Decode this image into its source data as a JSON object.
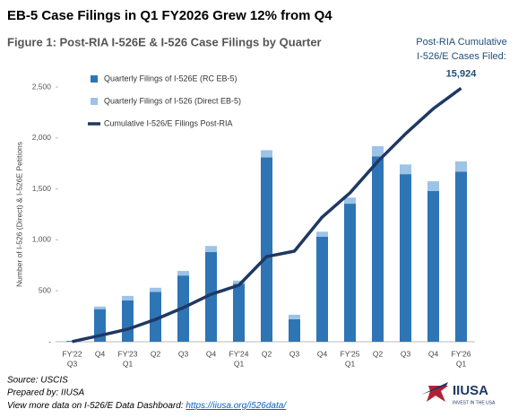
{
  "chart_data": {
    "type": "bar",
    "title": "EB-5 Case Filings in Q1 FY2026 Grew 12% from Q4",
    "subtitle": "Figure 1: Post-RIA I-526E & I-526 Case Filings by Quarter",
    "y_label": "Number of I-526 (Direct) & I-526E Petitions",
    "annotation": [
      "Post-RIA Cumulative",
      "I-526/E Cases Filed:"
    ],
    "categories": [
      [
        "FY'22",
        "Q3"
      ],
      [
        "Q4"
      ],
      [
        "FY'23",
        "Q1"
      ],
      [
        "Q2"
      ],
      [
        "Q3"
      ],
      [
        "Q4"
      ],
      [
        "FY'24",
        "Q1"
      ],
      [
        "Q2"
      ],
      [
        "Q3"
      ],
      [
        "Q4"
      ],
      [
        "FY'25",
        "Q1"
      ],
      [
        "Q2"
      ],
      [
        "Q3"
      ],
      [
        "Q4"
      ],
      [
        "FY'26",
        "Q1"
      ]
    ],
    "series": [
      {
        "name": "Quarterly Filings of I-526E (RC EB-5)",
        "color": "#2e75b6",
        "type": "bar",
        "values": [
          8,
          320,
          405,
          490,
          650,
          880,
          570,
          1810,
          220,
          1030,
          1355,
          1820,
          1645,
          1480,
          1670
        ]
      },
      {
        "name": "Quarterly Filings of I-526 (Direct EB-5)",
        "color": "#9dc3e6",
        "type": "bar",
        "values": [
          2,
          25,
          45,
          40,
          45,
          60,
          30,
          70,
          45,
          50,
          60,
          100,
          95,
          95,
          100
        ]
      },
      {
        "name": "Cumulative I-526/E Filings Post-RIA",
        "color": "#1f3864",
        "type": "line",
        "axis": "y2",
        "values": [
          10,
          390,
          790,
          1400,
          2140,
          2980,
          3550,
          5350,
          5690,
          7830,
          9350,
          11320,
          13060,
          14640,
          15924
        ],
        "value_labels": [
          null,
          null,
          null,
          null,
          null,
          null,
          null,
          null,
          null,
          null,
          null,
          null,
          null,
          null,
          "15,924"
        ]
      }
    ],
    "ylim": [
      0,
      2500
    ],
    "yticks": [
      {
        "value": 0,
        "label": "-"
      },
      500,
      {
        "value": 1000,
        "label": "1,000"
      },
      {
        "value": 1500,
        "label": "1,500"
      },
      {
        "value": 2000,
        "label": "2,000"
      },
      {
        "value": 2500,
        "label": "2,500"
      }
    ],
    "y2lim": [
      0,
      16000
    ],
    "grid": false
  },
  "footer": {
    "source": "Source: USCIS",
    "prepared": "Prepared by: IIUSA",
    "more": "View more data on I-526/E Data Dashboard: ",
    "link": "https://iiusa.org/i526data/"
  },
  "logo": {
    "name": "IIUSA",
    "tagline": "INVEST IN THE USA"
  }
}
